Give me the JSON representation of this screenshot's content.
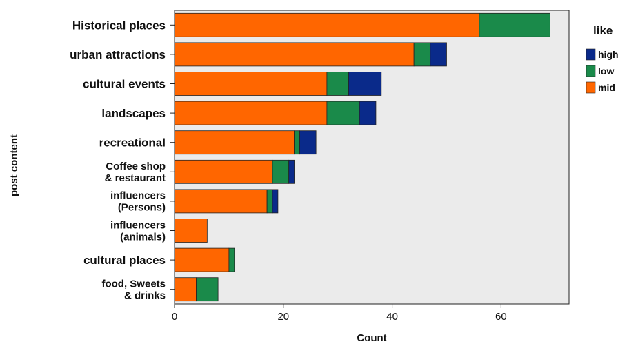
{
  "chart_data": {
    "type": "bar",
    "orientation": "horizontal",
    "stacked": true,
    "xlabel": "Count",
    "ylabel": "post content",
    "xlim": [
      0,
      72.5
    ],
    "xticks": [
      "0",
      "20",
      "40",
      "60"
    ],
    "grid": false,
    "legend_title": "like",
    "legend_position": "right",
    "categories": [
      [
        "Historical places"
      ],
      [
        "urban attractions"
      ],
      [
        "cultural events"
      ],
      [
        "landscapes"
      ],
      [
        "recreational"
      ],
      [
        "Coffee shop",
        "& restaurant"
      ],
      [
        "influencers",
        "(Persons)"
      ],
      [
        "influencers",
        "(animals)"
      ],
      [
        "cultural places"
      ],
      [
        "food, Sweets",
        "& drinks"
      ]
    ],
    "series": [
      {
        "name": "mid",
        "color": "#ff6600",
        "values": [
          56,
          44,
          28,
          28,
          22,
          18,
          17,
          6,
          10,
          4
        ]
      },
      {
        "name": "low",
        "color": "#1a8a4a",
        "values": [
          13,
          3,
          4,
          6,
          1,
          3,
          1,
          0,
          1,
          4
        ]
      },
      {
        "name": "high",
        "color": "#0a2a8a",
        "values": [
          0,
          3,
          6,
          3,
          3,
          1,
          1,
          0,
          0,
          0
        ]
      }
    ],
    "legend": [
      {
        "name": "high",
        "color": "#0a2a8a"
      },
      {
        "name": "low",
        "color": "#1a8a4a"
      },
      {
        "name": "mid",
        "color": "#ff6600"
      }
    ],
    "plot_background": "#ebebeb"
  }
}
